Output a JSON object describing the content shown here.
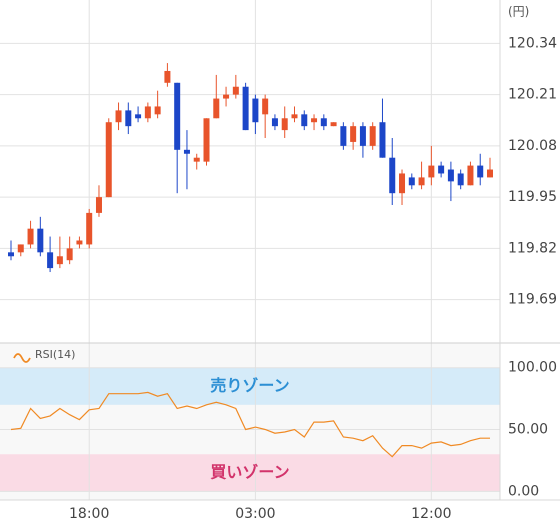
{
  "chart_data": [
    {
      "type": "candlestick",
      "y_unit": "(円)",
      "categories": [
        null,
        null,
        null,
        null,
        null,
        null,
        null,
        null,
        "18:00",
        null,
        null,
        null,
        null,
        null,
        null,
        null,
        null,
        null,
        null,
        null,
        null,
        null,
        null,
        null,
        null,
        "03:00",
        null,
        null,
        null,
        null,
        null,
        null,
        null,
        null,
        null,
        null,
        null,
        null,
        null,
        null,
        null,
        null,
        null,
        "12:00",
        null,
        null,
        null,
        null,
        null,
        null
      ],
      "open": [
        119.81,
        119.81,
        119.83,
        119.87,
        119.81,
        119.78,
        119.79,
        119.83,
        119.83,
        119.91,
        119.95,
        120.14,
        120.17,
        120.16,
        120.15,
        120.16,
        120.24,
        120.24,
        120.07,
        120.04,
        120.04,
        120.15,
        120.2,
        120.21,
        120.23,
        120.2,
        120.16,
        120.15,
        120.12,
        120.15,
        120.16,
        120.14,
        120.15,
        120.13,
        120.13,
        120.09,
        120.13,
        120.08,
        120.14,
        120.05,
        119.96,
        120.0,
        119.98,
        120.0,
        120.03,
        120.02,
        120.01,
        119.98,
        120.03,
        120.0
      ],
      "high": [
        119.84,
        119.83,
        119.89,
        119.9,
        119.85,
        119.85,
        119.85,
        119.85,
        119.92,
        119.98,
        120.15,
        120.19,
        120.19,
        120.18,
        120.19,
        120.22,
        120.29,
        120.24,
        120.12,
        120.06,
        120.15,
        120.26,
        120.23,
        120.26,
        120.24,
        120.21,
        120.21,
        120.16,
        120.18,
        120.18,
        120.17,
        120.16,
        120.16,
        120.14,
        120.14,
        120.14,
        120.14,
        120.14,
        120.2,
        120.1,
        120.02,
        120.01,
        120.04,
        120.08,
        120.04,
        120.04,
        120.02,
        120.04,
        120.06,
        120.05
      ],
      "low": [
        119.79,
        119.8,
        119.82,
        119.8,
        119.76,
        119.77,
        119.78,
        119.82,
        119.82,
        119.9,
        119.95,
        120.12,
        120.11,
        120.14,
        120.14,
        120.15,
        120.23,
        119.96,
        119.97,
        120.02,
        120.03,
        120.15,
        120.18,
        120.2,
        120.12,
        120.11,
        120.1,
        120.12,
        120.1,
        120.14,
        120.12,
        120.12,
        120.12,
        120.13,
        120.07,
        120.07,
        120.05,
        120.07,
        120.05,
        119.93,
        119.93,
        119.97,
        119.97,
        119.98,
        120.0,
        119.94,
        119.97,
        119.98,
        119.98,
        120.0
      ],
      "close": [
        119.8,
        119.83,
        119.87,
        119.81,
        119.77,
        119.8,
        119.82,
        119.84,
        119.91,
        119.95,
        120.14,
        120.17,
        120.13,
        120.15,
        120.18,
        120.18,
        120.27,
        120.07,
        120.06,
        120.05,
        120.15,
        120.2,
        120.21,
        120.23,
        120.12,
        120.14,
        120.2,
        120.13,
        120.15,
        120.16,
        120.13,
        120.15,
        120.13,
        120.14,
        120.08,
        120.13,
        120.08,
        120.13,
        120.05,
        119.96,
        120.01,
        119.98,
        120.0,
        120.03,
        120.01,
        119.99,
        119.98,
        120.03,
        120.0,
        120.02
      ],
      "up_color": "#e8542b",
      "down_color": "#1c46c8",
      "ylim": [
        119.58,
        120.45
      ],
      "yticks": [
        120.34,
        120.21,
        120.08,
        119.95,
        119.82,
        119.69
      ],
      "grid": true
    },
    {
      "type": "line",
      "series": [
        {
          "name": "RSI(14)",
          "color": "#f08a24",
          "values": [
            50,
            51,
            67,
            59,
            61,
            67,
            62,
            58,
            66,
            67,
            79,
            79,
            79,
            79,
            80,
            77,
            79,
            67,
            69,
            67,
            70,
            72,
            70,
            67,
            50,
            52,
            50,
            47,
            48,
            50,
            44,
            56,
            56,
            57,
            44,
            43,
            41,
            45,
            35,
            28,
            37,
            37,
            35,
            39,
            40,
            37,
            38,
            41,
            43,
            43
          ]
        }
      ],
      "zones": [
        {
          "label": "売りゾーン",
          "range": [
            70,
            100
          ],
          "color": "#d5ebf9",
          "text_color": "#2c8fd4"
        },
        {
          "label": "買いゾーン",
          "range": [
            0,
            30
          ],
          "color": "#fadbe5",
          "text_color": "#d2336b"
        }
      ],
      "ylim": [
        -7,
        120
      ],
      "yticks": [
        {
          "value": 100,
          "label": "100.00"
        },
        {
          "value": 50,
          "label": "50.00"
        },
        {
          "value": 0,
          "label": "0.00"
        }
      ],
      "grid": true
    }
  ]
}
